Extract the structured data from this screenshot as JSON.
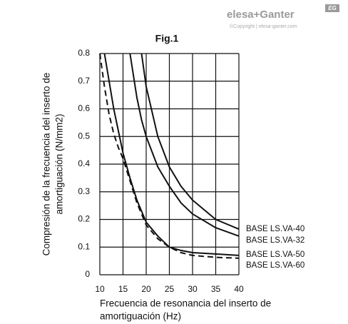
{
  "logo": {
    "brand": "elesa+Ganter",
    "copyright": "©Copyright | elesa-ganter.com",
    "badge": "EG"
  },
  "chart_data": {
    "type": "line",
    "title": "Fig.1",
    "xlabel": [
      "Frecuencia de resonancia del inserto de",
      "amortiguación (Hz)"
    ],
    "ylabel": [
      "Compresión de la frecuencia del inserto de",
      "amortiguación (N/mm2)"
    ],
    "x": [
      10,
      11,
      12,
      13,
      14,
      15,
      16.5,
      18,
      19,
      20,
      22.5,
      25,
      27.5,
      30,
      35,
      40
    ],
    "series": [
      {
        "name": "BASE LS.VA-40",
        "color": "#111111",
        "line_style": "solid",
        "values": [
          null,
          null,
          null,
          null,
          null,
          null,
          null,
          null,
          0.8,
          0.68,
          0.5,
          0.39,
          0.32,
          0.27,
          0.2,
          0.165
        ]
      },
      {
        "name": "BASE LS.VA-32",
        "color": "#111111",
        "line_style": "solid",
        "values": [
          null,
          null,
          null,
          null,
          null,
          null,
          0.8,
          0.64,
          0.56,
          0.5,
          0.39,
          0.32,
          0.26,
          0.22,
          0.17,
          0.14
        ]
      },
      {
        "name": "BASE LS.VA-50",
        "color": "#111111",
        "line_style": "solid",
        "values": [
          null,
          0.8,
          0.7,
          0.6,
          0.52,
          0.44,
          0.35,
          0.27,
          0.23,
          0.19,
          0.14,
          0.1,
          0.088,
          0.08,
          0.075,
          0.07
        ]
      },
      {
        "name": "BASE LS.VA-60",
        "color": "#111111",
        "line_style": "dashed",
        "values": [
          0.8,
          0.68,
          0.58,
          0.51,
          0.46,
          0.42,
          0.34,
          0.26,
          0.22,
          0.18,
          0.13,
          0.1,
          0.08,
          0.07,
          0.063,
          0.06
        ]
      }
    ],
    "xlim": [
      10,
      40
    ],
    "xticks": [
      10,
      15,
      20,
      25,
      30,
      35,
      40
    ],
    "ylim": [
      0,
      0.8
    ],
    "yticks": [
      0,
      0.1,
      0.2,
      0.3,
      0.4,
      0.5,
      0.6,
      0.7,
      0.8
    ],
    "grid": true
  }
}
